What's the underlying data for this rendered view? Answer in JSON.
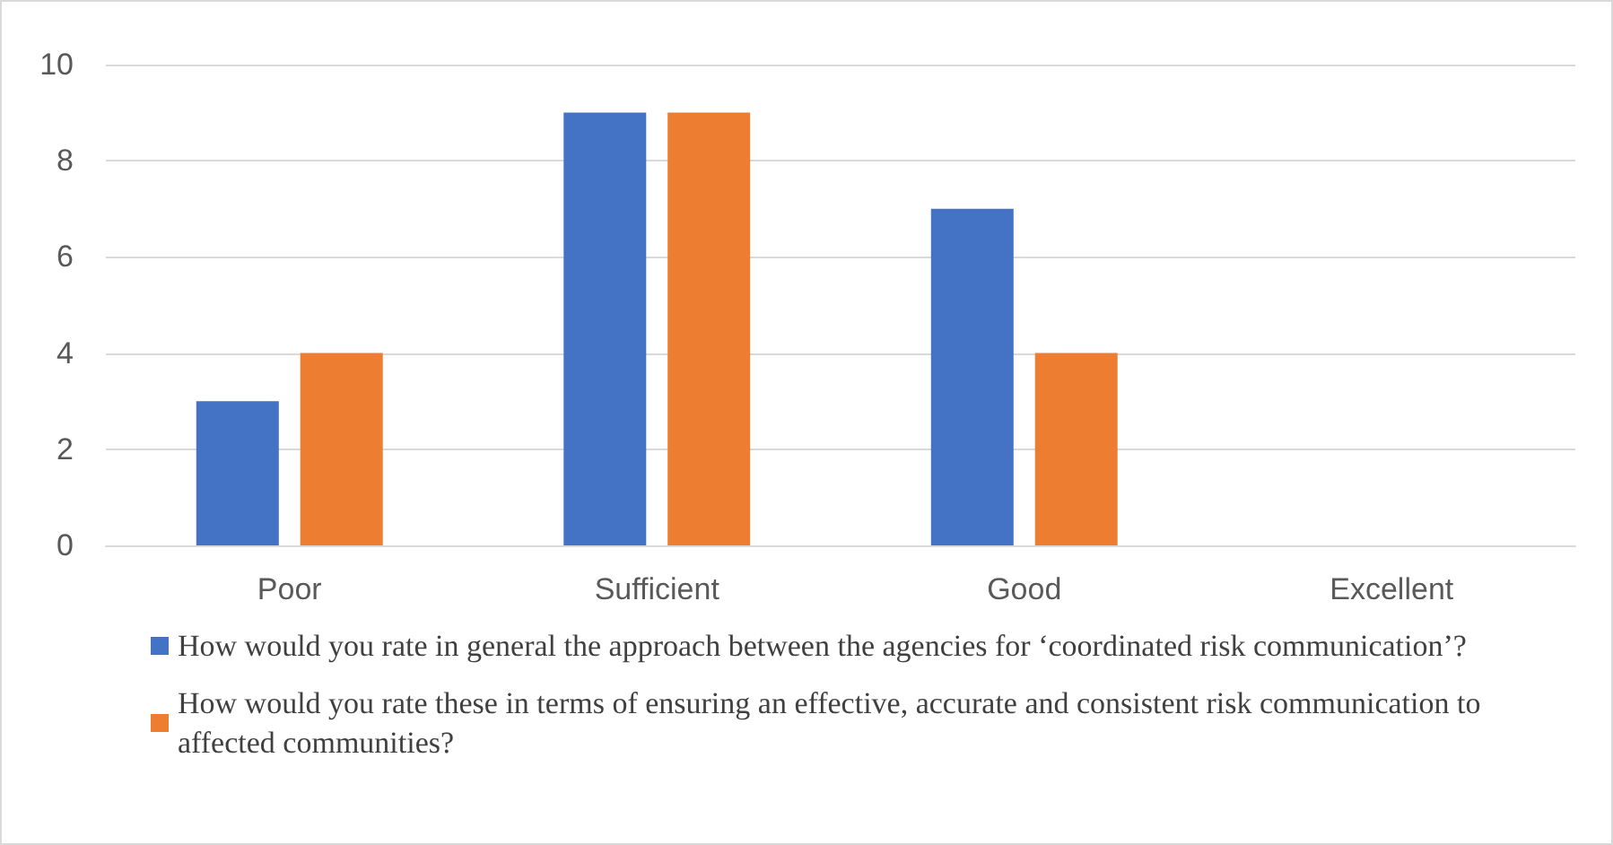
{
  "chart_data": {
    "type": "bar",
    "categories": [
      "Poor",
      "Sufficient",
      "Good",
      "Excellent"
    ],
    "series": [
      {
        "name": "How would you rate in general the approach between the agencies for ‘coordinated risk communication’?",
        "color": "#4472c4",
        "values": [
          3,
          9,
          7,
          0
        ]
      },
      {
        "name": "How would you rate these in terms of ensuring an effective, accurate and consistent risk communication to affected communities?",
        "color": "#ed7d31",
        "values": [
          4,
          9,
          4,
          0
        ]
      }
    ],
    "ylim": [
      0,
      10
    ],
    "yticks": [
      0,
      2,
      4,
      6,
      8,
      10
    ],
    "grid": "y",
    "legend": "bottom"
  }
}
